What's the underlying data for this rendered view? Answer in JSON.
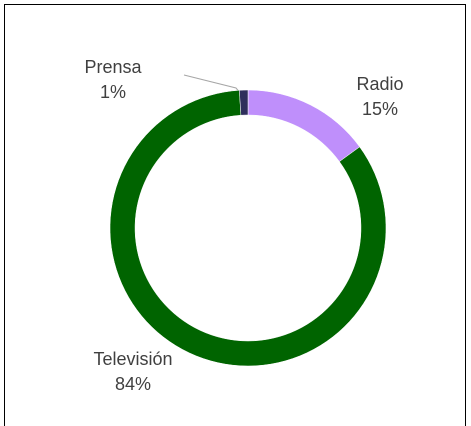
{
  "chart_data": {
    "type": "donut",
    "categories": [
      "Radio",
      "Televisión",
      "Prensa"
    ],
    "values": [
      15,
      84,
      1
    ],
    "value_labels": [
      "15%",
      "84%",
      "1%"
    ],
    "colors": [
      "#bf8ffb",
      "#006400",
      "#2e2e5c"
    ]
  }
}
